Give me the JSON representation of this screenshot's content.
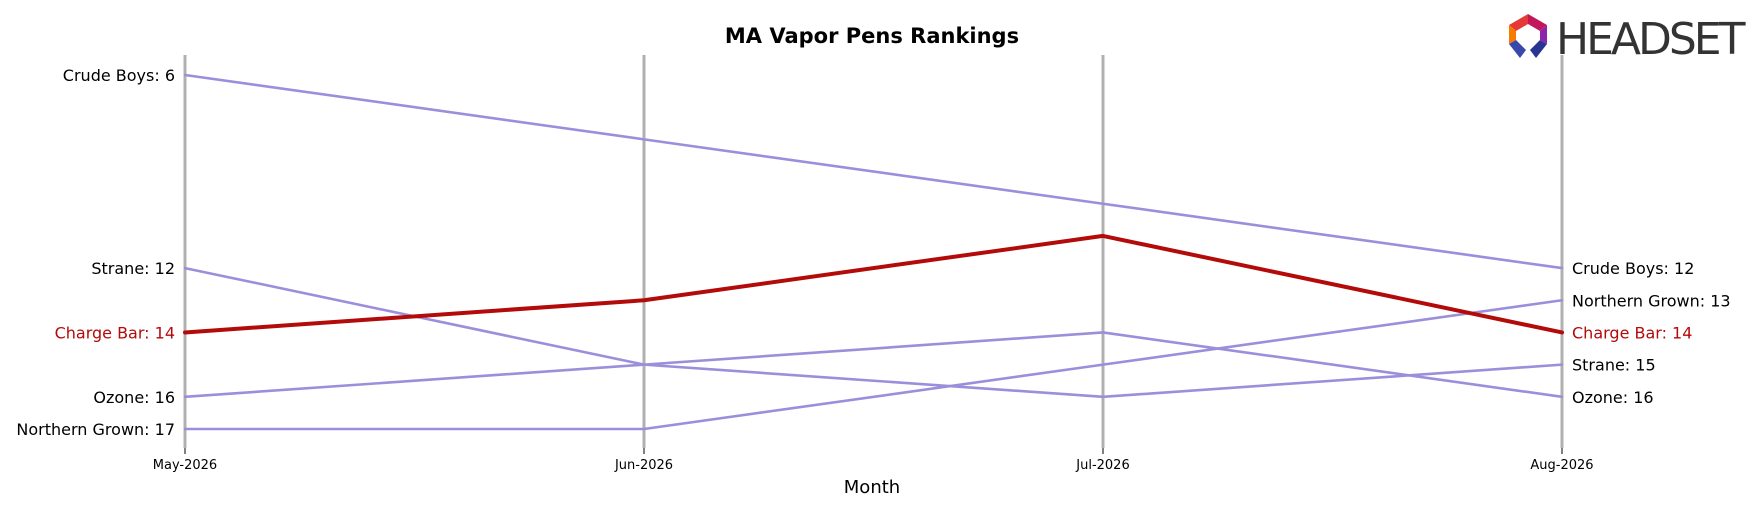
{
  "chart_data": {
    "type": "line",
    "title": "MA Vapor Pens Rankings",
    "xlabel": "Month",
    "ylabel": "",
    "categories": [
      "May-2026",
      "Jun-2026",
      "Jul-2026",
      "Aug-2026"
    ],
    "y_inverted": true,
    "ylim": [
      5.5,
      17.5
    ],
    "grid": false,
    "highlight": "Charge Bar",
    "series": [
      {
        "name": "Crude Boys",
        "values": [
          6,
          8,
          10,
          12
        ],
        "color": "#9b8fdb",
        "highlight": false
      },
      {
        "name": "Strane",
        "values": [
          12,
          15,
          16,
          15
        ],
        "color": "#9b8fdb",
        "highlight": false
      },
      {
        "name": "Ozone",
        "values": [
          16,
          15,
          14,
          16
        ],
        "color": "#9b8fdb",
        "highlight": false
      },
      {
        "name": "Northern Grown",
        "values": [
          17,
          17,
          15,
          13
        ],
        "color": "#9b8fdb",
        "highlight": false
      },
      {
        "name": "Charge Bar",
        "values": [
          14,
          13,
          11,
          14
        ],
        "color": "#b30a0a",
        "highlight": true
      }
    ],
    "left_labels": [
      {
        "text": "Crude Boys: 6",
        "rank": 6,
        "color": "#000000"
      },
      {
        "text": "Strane: 12",
        "rank": 12,
        "color": "#000000"
      },
      {
        "text": "Charge Bar: 14",
        "rank": 14,
        "color": "#b30a0a"
      },
      {
        "text": "Ozone: 16",
        "rank": 16,
        "color": "#000000"
      },
      {
        "text": "Northern Grown: 17",
        "rank": 17,
        "color": "#000000"
      }
    ],
    "right_labels": [
      {
        "text": "Crude Boys: 12",
        "rank": 12,
        "color": "#000000"
      },
      {
        "text": "Northern Grown: 13",
        "rank": 13,
        "color": "#000000"
      },
      {
        "text": "Charge Bar: 14",
        "rank": 14,
        "color": "#b30a0a"
      },
      {
        "text": "Strane: 15",
        "rank": 15,
        "color": "#000000"
      },
      {
        "text": "Ozone: 16",
        "rank": 16,
        "color": "#000000"
      }
    ]
  },
  "logo": {
    "text": "HEADSET",
    "colors": [
      "#c2185b",
      "#e53935",
      "#f57c00",
      "#3949ab",
      "#283593",
      "#8e24aa"
    ]
  },
  "colors": {
    "vertical_line": "#b0b0b0",
    "muted_series": "#9b8fdb",
    "highlight_series": "#b30a0a"
  }
}
